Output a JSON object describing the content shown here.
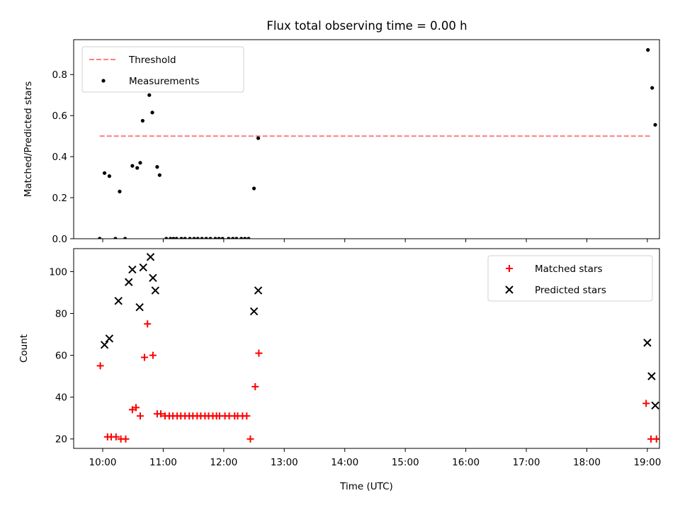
{
  "figure": {
    "title": "Flux total observing time = 0.00 h"
  },
  "chart_data": [
    {
      "type": "scatter",
      "panel": "top",
      "title": "Flux total observing time = 0.00 h",
      "xlabel": "",
      "ylabel": "Matched/Predicted stars",
      "xlim": [
        9.52,
        19.2
      ],
      "ylim": [
        0.0,
        0.97
      ],
      "yticks": [
        0.0,
        0.2,
        0.4,
        0.6,
        0.8
      ],
      "ytick_labels": [
        "0.0",
        "0.2",
        "0.4",
        "0.6",
        "0.8"
      ],
      "x_unit": "hours UTC",
      "legend_position": "upper-left",
      "series": [
        {
          "name": "Threshold",
          "kind": "line",
          "style": "dashed",
          "color": "#ff7f7f",
          "x": [
            9.95,
            19.08
          ],
          "y": [
            0.5,
            0.5
          ]
        },
        {
          "name": "Measurements",
          "kind": "scatter",
          "marker": "dot",
          "color": "#000000",
          "x": [
            9.95,
            10.03,
            10.11,
            10.21,
            10.28,
            10.37,
            10.49,
            10.57,
            10.62,
            10.66,
            10.77,
            10.82,
            10.9,
            10.94,
            11.05,
            11.12,
            11.17,
            11.22,
            11.3,
            11.36,
            11.44,
            11.51,
            11.57,
            11.64,
            11.71,
            11.78,
            11.86,
            11.92,
            11.98,
            12.08,
            12.15,
            12.21,
            12.29,
            12.35,
            12.41,
            12.5,
            12.57,
            19.01,
            19.08,
            19.13,
            19.22
          ],
          "y": [
            0.0,
            0.32,
            0.305,
            0.0,
            0.23,
            0.0,
            0.355,
            0.345,
            0.37,
            0.575,
            0.7,
            0.615,
            0.35,
            0.31,
            0.0,
            0.0,
            0.0,
            0.0,
            0.0,
            0.0,
            0.0,
            0.0,
            0.0,
            0.0,
            0.0,
            0.0,
            0.0,
            0.0,
            0.0,
            0.0,
            0.0,
            0.0,
            0.0,
            0.0,
            0.0,
            0.245,
            0.49,
            0.92,
            0.735,
            0.555,
            0.0
          ]
        }
      ]
    },
    {
      "type": "scatter",
      "panel": "bottom",
      "title": "",
      "xlabel": "Time (UTC)",
      "ylabel": "Count",
      "xlim": [
        9.52,
        19.2
      ],
      "ylim": [
        15.5,
        111
      ],
      "yticks": [
        20,
        40,
        60,
        80,
        100
      ],
      "ytick_labels": [
        "20",
        "40",
        "60",
        "80",
        "100"
      ],
      "xticks": [
        10,
        11,
        12,
        13,
        14,
        15,
        16,
        17,
        18,
        19
      ],
      "xtick_labels": [
        "10:00",
        "11:00",
        "12:00",
        "13:00",
        "14:00",
        "15:00",
        "16:00",
        "17:00",
        "18:00",
        "19:00"
      ],
      "legend_position": "upper-right",
      "series": [
        {
          "name": "Matched stars",
          "marker": "plus",
          "color": "#ff0000",
          "x": [
            9.96,
            10.08,
            10.14,
            10.22,
            10.3,
            10.38,
            10.49,
            10.55,
            10.62,
            10.69,
            10.74,
            10.83,
            10.9,
            10.96,
            11.03,
            11.1,
            11.16,
            11.23,
            11.29,
            11.36,
            11.43,
            11.49,
            11.56,
            11.62,
            11.69,
            11.75,
            11.82,
            11.88,
            11.93,
            12.02,
            12.09,
            12.18,
            12.23,
            12.31,
            12.38,
            12.44,
            12.52,
            12.58,
            18.98,
            19.06,
            19.15,
            19.21
          ],
          "y": [
            55,
            21,
            21,
            21,
            20,
            20,
            34,
            35,
            31,
            59,
            75,
            60,
            32,
            32,
            31,
            31,
            31,
            31,
            31,
            31,
            31,
            31,
            31,
            31,
            31,
            31,
            31,
            31,
            31,
            31,
            31,
            31,
            31,
            31,
            31,
            20,
            45,
            61,
            37,
            20,
            20,
            20
          ]
        },
        {
          "name": "Predicted stars",
          "marker": "x",
          "color": "#000000",
          "x": [
            10.03,
            10.11,
            10.26,
            10.43,
            10.49,
            10.61,
            10.67,
            10.79,
            10.83,
            10.87,
            12.5,
            12.57,
            19.0,
            19.07,
            19.13
          ],
          "y": [
            65,
            68,
            86,
            95,
            101,
            83,
            102,
            107,
            97,
            91,
            81,
            91,
            66,
            50,
            36
          ]
        }
      ]
    }
  ]
}
